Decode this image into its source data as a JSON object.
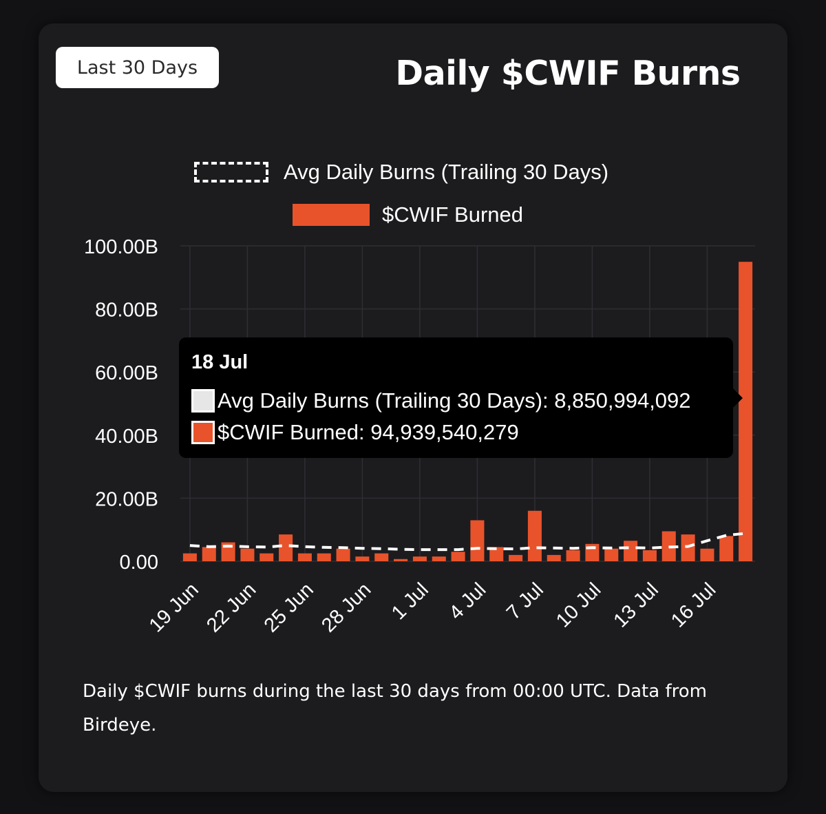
{
  "header": {
    "range_button": "Last 30 Days",
    "title": "Daily $CWIF Burns"
  },
  "legend": {
    "avg_label": "Avg Daily Burns (Trailing 30 Days)",
    "burned_label": "$CWIF Burned"
  },
  "tooltip": {
    "date": "18 Jul",
    "avg_line": "Avg Daily Burns (Trailing 30 Days): 8,850,994,092",
    "burned_line": "$CWIF Burned: 94,939,540,279"
  },
  "caption": "Daily $CWIF burns during the last 30 days from 00:00 UTC. Data from Birdeye.",
  "colors": {
    "bar": "#e8532b",
    "avg_line": "#ffffff",
    "grid": "#2e2e33",
    "background": "#1c1c1f"
  },
  "chart_data": {
    "type": "bar",
    "categories": [
      "19 Jun",
      "20 Jun",
      "21 Jun",
      "22 Jun",
      "23 Jun",
      "24 Jun",
      "25 Jun",
      "26 Jun",
      "27 Jun",
      "28 Jun",
      "29 Jun",
      "30 Jun",
      "1 Jul",
      "2 Jul",
      "3 Jul",
      "4 Jul",
      "5 Jul",
      "6 Jul",
      "7 Jul",
      "8 Jul",
      "9 Jul",
      "10 Jul",
      "11 Jul",
      "12 Jul",
      "13 Jul",
      "14 Jul",
      "15 Jul",
      "16 Jul",
      "17 Jul",
      "18 Jul"
    ],
    "tick_labels": [
      "19 Jun",
      "22 Jun",
      "25 Jun",
      "28 Jun",
      "1 Jul",
      "4 Jul",
      "7 Jul",
      "10 Jul",
      "13 Jul",
      "16 Jul"
    ],
    "y_tick_labels": [
      "0.00",
      "20.00B",
      "40.00B",
      "60.00B",
      "80.00B",
      "100.00B"
    ],
    "ylim": [
      0,
      100000000000
    ],
    "series": [
      {
        "name": "$CWIF Burned",
        "type": "bar",
        "values": [
          2500000000,
          4500000000,
          6000000000,
          4000000000,
          2500000000,
          8500000000,
          2500000000,
          2500000000,
          4000000000,
          1500000000,
          2500000000,
          700000000,
          1500000000,
          1500000000,
          3000000000,
          13000000000,
          4500000000,
          2000000000,
          16000000000,
          2000000000,
          3500000000,
          5500000000,
          4000000000,
          6500000000,
          3500000000,
          9500000000,
          8500000000,
          4000000000,
          8000000000,
          94939540279
        ]
      },
      {
        "name": "Avg Daily Burns (Trailing 30 Days)",
        "type": "line",
        "values": [
          5000000000,
          4600000000,
          4800000000,
          4600000000,
          4500000000,
          5000000000,
          4600000000,
          4400000000,
          4300000000,
          4100000000,
          4000000000,
          3800000000,
          3700000000,
          3700000000,
          3700000000,
          4100000000,
          4000000000,
          3900000000,
          4300000000,
          4200000000,
          4100000000,
          4300000000,
          4200000000,
          4300000000,
          4200000000,
          4500000000,
          4700000000,
          6500000000,
          8200000000,
          8850994092
        ]
      }
    ],
    "grid": true,
    "legend_position": "top"
  }
}
